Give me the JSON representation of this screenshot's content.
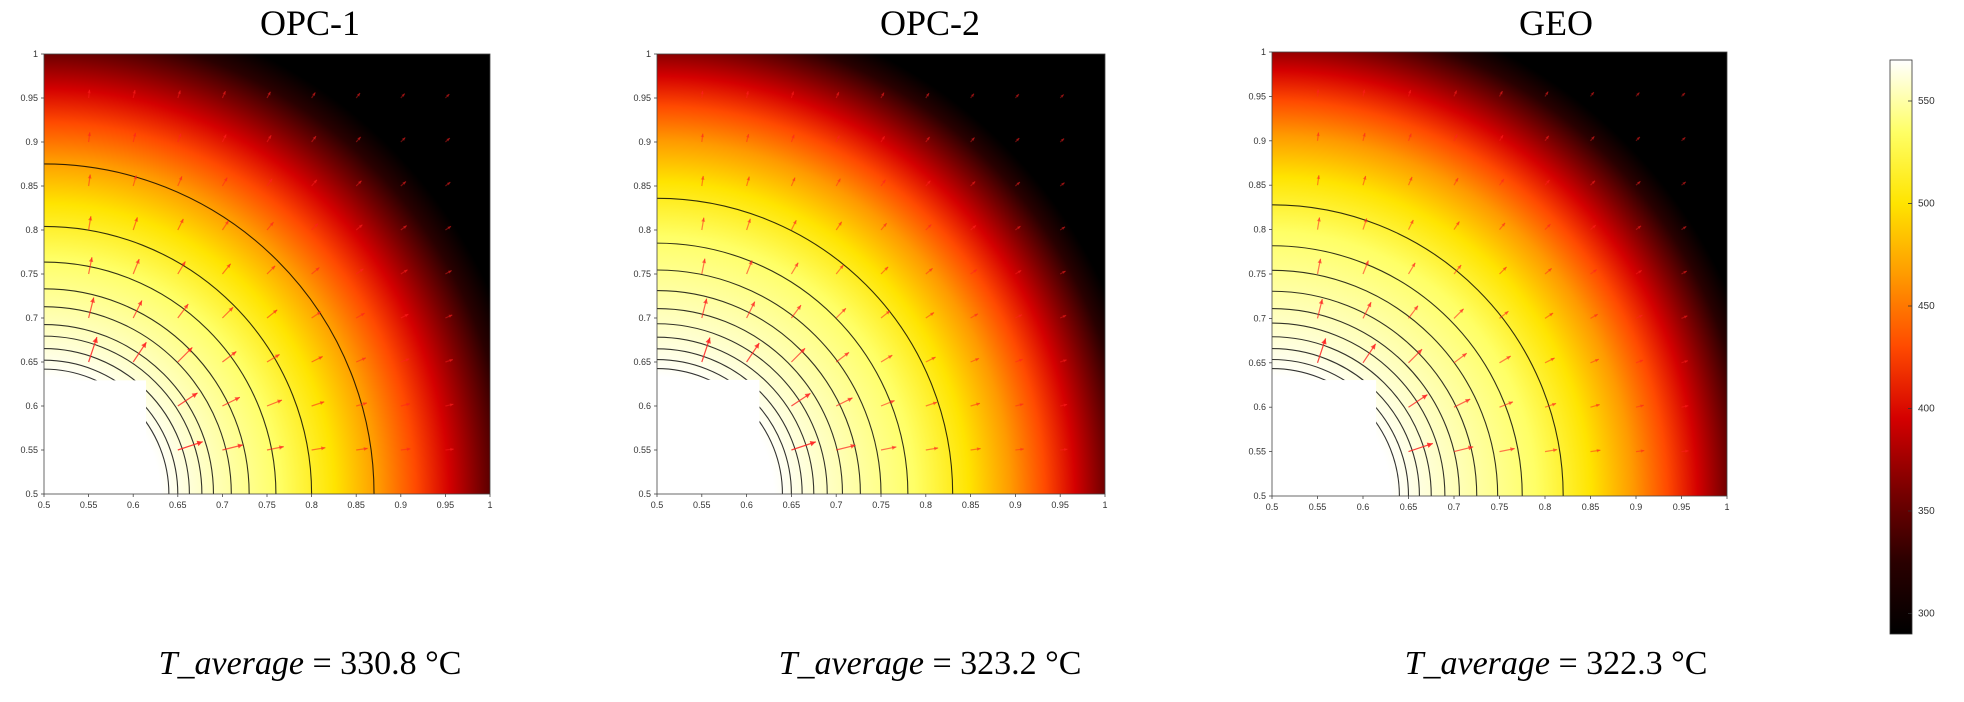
{
  "colors": {
    "heatmap_stops": [
      "#000000",
      "#2a0000",
      "#7a0000",
      "#d40000",
      "#ff4a00",
      "#ff9a00",
      "#ffe400",
      "#ffff66",
      "#ffffff"
    ],
    "contour_line": "#000000",
    "flux_arrow": "#ff2020"
  },
  "colorbar": {
    "min": 290,
    "max": 570,
    "ticks": [
      "300",
      "350",
      "400",
      "450",
      "500",
      "550"
    ]
  },
  "chart_data": [
    {
      "type": "heatmap",
      "title": "OPC-1",
      "caption_var": "T_average",
      "caption_value": "= 330.8 °C",
      "xlim": [
        0.5,
        1
      ],
      "ylim": [
        0.5,
        1
      ],
      "xticks": [
        "0.5",
        "0.55",
        "0.6",
        "0.65",
        "0.7",
        "0.75",
        "0.8",
        "0.85",
        "0.9",
        "0.95",
        "1"
      ],
      "yticks": [
        "0.5",
        "0.55",
        "0.6",
        "0.65",
        "0.7",
        "0.75",
        "0.8",
        "0.85",
        "0.9",
        "0.95",
        "1"
      ],
      "hole_radius": 0.13,
      "t_inner": 570,
      "t_outer": 290,
      "decay_length": 0.14,
      "contour_radii": [
        0.14,
        0.15,
        0.163,
        0.177,
        0.19,
        0.21,
        0.23,
        0.26,
        0.3,
        0.37
      ],
      "average_c": 330.8
    },
    {
      "type": "heatmap",
      "title": "OPC-2",
      "caption_var": "T_average",
      "caption_value": "= 323.2 °C",
      "xlim": [
        0.5,
        1
      ],
      "ylim": [
        0.5,
        1
      ],
      "xticks": [
        "0.5",
        "0.55",
        "0.6",
        "0.65",
        "0.7",
        "0.75",
        "0.8",
        "0.85",
        "0.9",
        "0.95",
        "1"
      ],
      "yticks": [
        "0.5",
        "0.55",
        "0.6",
        "0.65",
        "0.7",
        "0.75",
        "0.8",
        "0.85",
        "0.9",
        "0.95",
        "1"
      ],
      "hole_radius": 0.13,
      "t_inner": 570,
      "t_outer": 290,
      "decay_length": 0.12,
      "contour_radii": [
        0.14,
        0.15,
        0.162,
        0.175,
        0.19,
        0.207,
        0.227,
        0.25,
        0.28,
        0.33
      ],
      "average_c": 323.2
    },
    {
      "type": "heatmap",
      "title": "GEO",
      "caption_var": "T_average",
      "caption_value": "= 322.3 °C",
      "xlim": [
        0.5,
        1
      ],
      "ylim": [
        0.5,
        1
      ],
      "xticks": [
        "0.5",
        "0.55",
        "0.6",
        "0.65",
        "0.7",
        "0.75",
        "0.8",
        "0.85",
        "0.9",
        "0.95",
        "1"
      ],
      "yticks": [
        "0.5",
        "0.55",
        "0.6",
        "0.65",
        "0.7",
        "0.75",
        "0.8",
        "0.85",
        "0.9",
        "0.95",
        "1"
      ],
      "hole_radius": 0.13,
      "t_inner": 570,
      "t_outer": 290,
      "decay_length": 0.118,
      "contour_radii": [
        0.14,
        0.15,
        0.162,
        0.175,
        0.19,
        0.206,
        0.225,
        0.248,
        0.275,
        0.32
      ],
      "average_c": 322.3
    }
  ]
}
